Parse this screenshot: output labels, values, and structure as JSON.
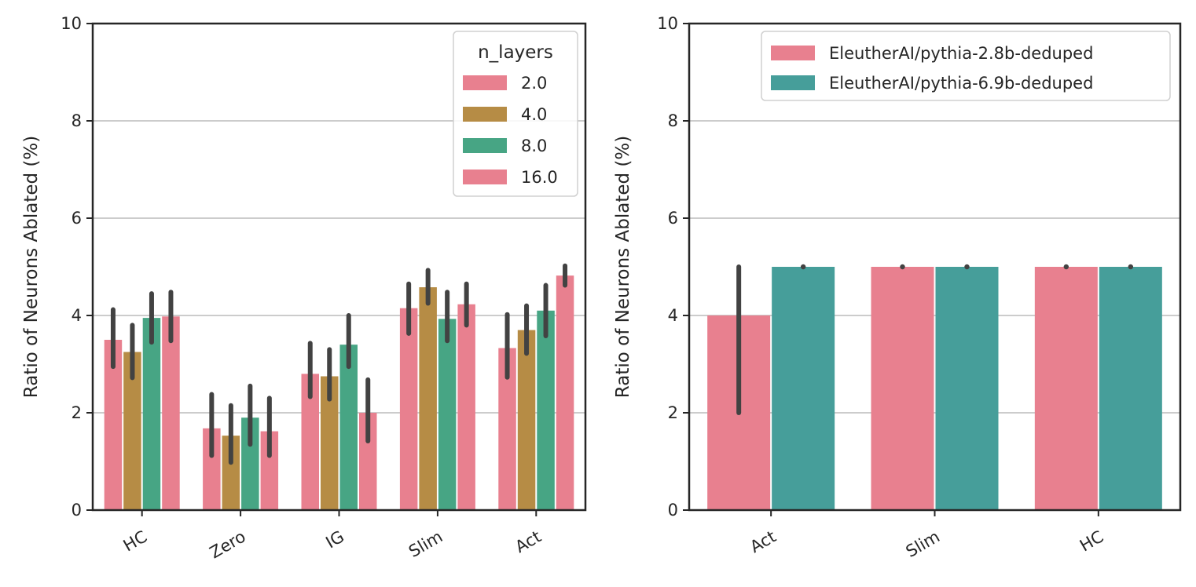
{
  "colors": {
    "pink": "#e8808f",
    "gold": "#b68c45",
    "green": "#47a584",
    "teal": "#469e9a",
    "errorbar": "#424242",
    "grid": "#cccccc",
    "axis": "#262626"
  },
  "chart_data": [
    {
      "type": "bar",
      "categories": [
        "HC",
        "Zero",
        "IG",
        "Slim",
        "Act"
      ],
      "ylabel": "Ratio of Neurons Ablated (%)",
      "xlabel": "",
      "ylim": [
        0,
        10
      ],
      "yticks": [
        "0",
        "2",
        "4",
        "6",
        "8",
        "10"
      ],
      "grid": "horizontal",
      "legend": {
        "title": "n_layers",
        "placement": "top-right",
        "entries": [
          "2.0",
          "4.0",
          "8.0",
          "16.0"
        ]
      },
      "series": [
        {
          "name": "2.0",
          "color": "#e8808f",
          "values": [
            3.5,
            1.68,
            2.8,
            4.15,
            3.33
          ],
          "err_low": [
            2.95,
            1.12,
            2.33,
            3.63,
            2.73
          ],
          "err_high": [
            4.12,
            2.38,
            3.43,
            4.65,
            4.02
          ]
        },
        {
          "name": "4.0",
          "color": "#b68c45",
          "values": [
            3.25,
            1.53,
            2.75,
            4.58,
            3.7
          ],
          "err_low": [
            2.72,
            0.98,
            2.28,
            4.25,
            3.22
          ],
          "err_high": [
            3.8,
            2.15,
            3.3,
            4.93,
            4.2
          ]
        },
        {
          "name": "8.0",
          "color": "#47a584",
          "values": [
            3.95,
            1.9,
            3.4,
            3.93,
            4.1
          ],
          "err_low": [
            3.45,
            1.35,
            2.95,
            3.48,
            3.58
          ],
          "err_high": [
            4.45,
            2.55,
            4.0,
            4.48,
            4.62
          ]
        },
        {
          "name": "16.0",
          "color": "#e8808f",
          "values": [
            3.98,
            1.62,
            2.0,
            4.23,
            4.82
          ],
          "err_low": [
            3.48,
            1.12,
            1.42,
            3.8,
            4.62
          ],
          "err_high": [
            4.48,
            2.3,
            2.68,
            4.65,
            5.02
          ]
        }
      ]
    },
    {
      "type": "bar",
      "categories": [
        "Act",
        "Slim",
        "HC"
      ],
      "ylabel": "Ratio of Neurons Ablated (%)",
      "xlabel": "",
      "ylim": [
        0,
        10
      ],
      "yticks": [
        "0",
        "2",
        "4",
        "6",
        "8",
        "10"
      ],
      "grid": "horizontal",
      "legend": {
        "title": "",
        "placement": "top-right",
        "entries": [
          "EleutherAI/pythia-2.8b-deduped",
          "EleutherAI/pythia-6.9b-deduped"
        ]
      },
      "series": [
        {
          "name": "EleutherAI/pythia-2.8b-deduped",
          "color": "#e8808f",
          "values": [
            4.0,
            5.0,
            5.0
          ],
          "err_low": [
            2.0,
            5.0,
            5.0
          ],
          "err_high": [
            5.0,
            5.0,
            5.0
          ]
        },
        {
          "name": "EleutherAI/pythia-6.9b-deduped",
          "color": "#469e9a",
          "values": [
            5.0,
            5.0,
            5.0
          ],
          "err_low": [
            5.0,
            5.0,
            5.0
          ],
          "err_high": [
            5.0,
            5.0,
            5.0
          ]
        }
      ]
    }
  ]
}
